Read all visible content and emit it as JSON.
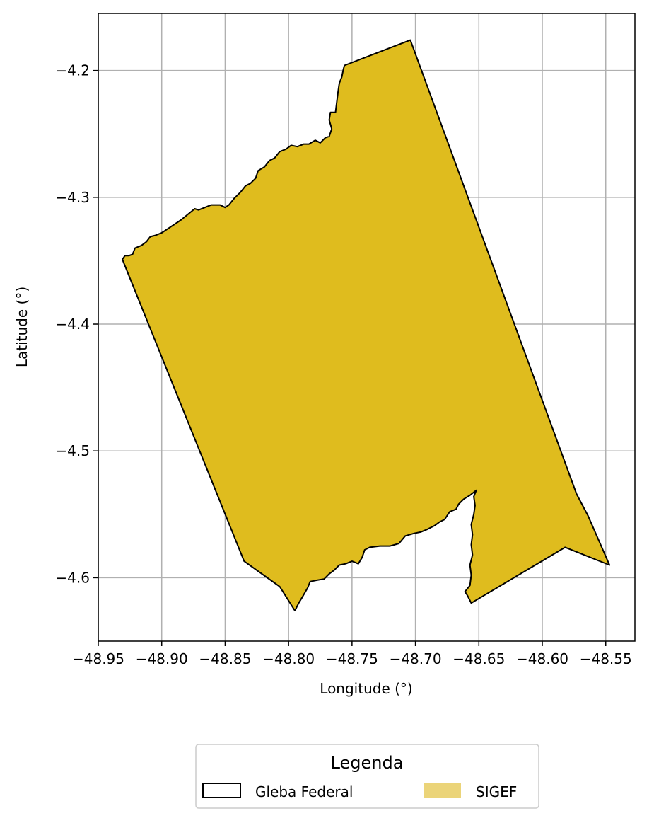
{
  "chart_data": {
    "type": "map",
    "xlabel": "Longitude (°)",
    "ylabel": "Latitude (°)",
    "xlim": [
      -48.95,
      -48.527
    ],
    "ylim": [
      -4.65,
      -4.155
    ],
    "grid": true,
    "x_ticks": [
      {
        "value": -48.95,
        "label": "−48.95"
      },
      {
        "value": -48.9,
        "label": "−48.90"
      },
      {
        "value": -48.85,
        "label": "−48.85"
      },
      {
        "value": -48.8,
        "label": "−48.80"
      },
      {
        "value": -48.75,
        "label": "−48.75"
      },
      {
        "value": -48.7,
        "label": "−48.70"
      },
      {
        "value": -48.65,
        "label": "−48.65"
      },
      {
        "value": -48.6,
        "label": "−48.60"
      },
      {
        "value": -48.55,
        "label": "−48.55"
      }
    ],
    "y_ticks": [
      {
        "value": -4.2,
        "label": "−4.2"
      },
      {
        "value": -4.3,
        "label": "−4.3"
      },
      {
        "value": -4.4,
        "label": "−4.4"
      },
      {
        "value": -4.5,
        "label": "−4.5"
      },
      {
        "value": -4.6,
        "label": "−4.6"
      }
    ],
    "layers": [
      {
        "name": "Gleba Federal",
        "fill": "none",
        "edgecolor": "#000000"
      },
      {
        "name": "SIGEF",
        "fill": "#dfbc1e",
        "legend_fill": "#ebd479",
        "edgecolor": "#000000"
      }
    ],
    "polygon": [
      [
        -48.931,
        -4.349
      ],
      [
        -48.929,
        -4.346
      ],
      [
        -48.926,
        -4.346
      ],
      [
        -48.923,
        -4.345
      ],
      [
        -48.921,
        -4.34
      ],
      [
        -48.916,
        -4.338
      ],
      [
        -48.912,
        -4.335
      ],
      [
        -48.909,
        -4.331
      ],
      [
        -48.905,
        -4.33
      ],
      [
        -48.9,
        -4.328
      ],
      [
        -48.897,
        -4.326
      ],
      [
        -48.885,
        -4.318
      ],
      [
        -48.874,
        -4.309
      ],
      [
        -48.871,
        -4.31
      ],
      [
        -48.866,
        -4.308
      ],
      [
        -48.861,
        -4.306
      ],
      [
        -48.854,
        -4.306
      ],
      [
        -48.85,
        -4.308
      ],
      [
        -48.847,
        -4.306
      ],
      [
        -48.843,
        -4.301
      ],
      [
        -48.838,
        -4.296
      ],
      [
        -48.834,
        -4.291
      ],
      [
        -48.83,
        -4.289
      ],
      [
        -48.826,
        -4.285
      ],
      [
        -48.824,
        -4.279
      ],
      [
        -48.819,
        -4.276
      ],
      [
        -48.815,
        -4.271
      ],
      [
        -48.811,
        -4.269
      ],
      [
        -48.807,
        -4.264
      ],
      [
        -48.802,
        -4.262
      ],
      [
        -48.798,
        -4.259
      ],
      [
        -48.793,
        -4.26
      ],
      [
        -48.788,
        -4.258
      ],
      [
        -48.784,
        -4.258
      ],
      [
        -48.779,
        -4.255
      ],
      [
        -48.775,
        -4.257
      ],
      [
        -48.771,
        -4.253
      ],
      [
        -48.768,
        -4.252
      ],
      [
        -48.766,
        -4.246
      ],
      [
        -48.768,
        -4.239
      ],
      [
        -48.767,
        -4.233
      ],
      [
        -48.763,
        -4.233
      ],
      [
        -48.762,
        -4.225
      ],
      [
        -48.761,
        -4.217
      ],
      [
        -48.76,
        -4.21
      ],
      [
        -48.758,
        -4.205
      ],
      [
        -48.757,
        -4.2
      ],
      [
        -48.756,
        -4.196
      ],
      [
        -48.704,
        -4.176
      ],
      [
        -48.573,
        -4.534
      ],
      [
        -48.564,
        -4.551
      ],
      [
        -48.547,
        -4.59
      ],
      [
        -48.582,
        -4.576
      ],
      [
        -48.656,
        -4.62
      ],
      [
        -48.659,
        -4.614
      ],
      [
        -48.661,
        -4.611
      ],
      [
        -48.657,
        -4.606
      ],
      [
        -48.656,
        -4.598
      ],
      [
        -48.657,
        -4.59
      ],
      [
        -48.655,
        -4.582
      ],
      [
        -48.656,
        -4.574
      ],
      [
        -48.655,
        -4.566
      ],
      [
        -48.656,
        -4.558
      ],
      [
        -48.654,
        -4.55
      ],
      [
        -48.653,
        -4.543
      ],
      [
        -48.654,
        -4.536
      ],
      [
        -48.652,
        -4.531
      ],
      [
        -48.657,
        -4.535
      ],
      [
        -48.662,
        -4.538
      ],
      [
        -48.666,
        -4.542
      ],
      [
        -48.668,
        -4.546
      ],
      [
        -48.673,
        -4.548
      ],
      [
        -48.677,
        -4.554
      ],
      [
        -48.681,
        -4.556
      ],
      [
        -48.685,
        -4.559
      ],
      [
        -48.691,
        -4.562
      ],
      [
        -48.696,
        -4.564
      ],
      [
        -48.701,
        -4.565
      ],
      [
        -48.708,
        -4.567
      ],
      [
        -48.713,
        -4.573
      ],
      [
        -48.72,
        -4.575
      ],
      [
        -48.728,
        -4.575
      ],
      [
        -48.736,
        -4.576
      ],
      [
        -48.74,
        -4.578
      ],
      [
        -48.742,
        -4.584
      ],
      [
        -48.745,
        -4.589
      ],
      [
        -48.75,
        -4.587
      ],
      [
        -48.755,
        -4.589
      ],
      [
        -48.76,
        -4.59
      ],
      [
        -48.764,
        -4.594
      ],
      [
        -48.768,
        -4.597
      ],
      [
        -48.772,
        -4.601
      ],
      [
        -48.778,
        -4.602
      ],
      [
        -48.783,
        -4.603
      ],
      [
        -48.785,
        -4.608
      ],
      [
        -48.789,
        -4.615
      ],
      [
        -48.792,
        -4.62
      ],
      [
        -48.795,
        -4.626
      ],
      [
        -48.807,
        -4.607
      ],
      [
        -48.835,
        -4.587
      ],
      [
        -48.931,
        -4.349
      ]
    ]
  },
  "legend": {
    "title": "Legenda",
    "items": [
      {
        "label": "Gleba Federal"
      },
      {
        "label": "SIGEF"
      }
    ]
  }
}
